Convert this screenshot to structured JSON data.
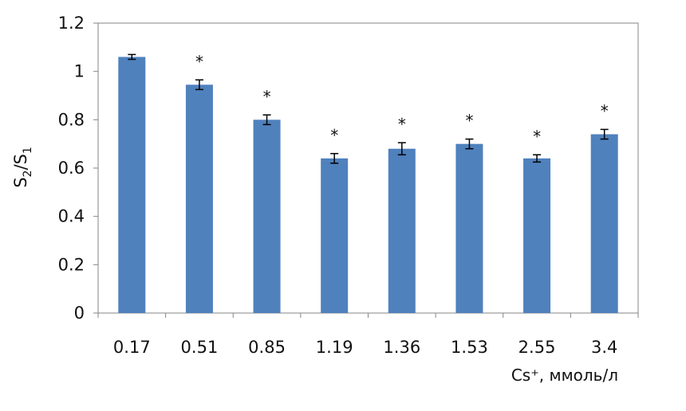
{
  "chart_data": {
    "type": "bar",
    "categories": [
      "0.17",
      "0.51",
      "0.85",
      "1.19",
      "1.36",
      "1.53",
      "2.55",
      "3.4"
    ],
    "values": [
      1.06,
      0.945,
      0.8,
      0.64,
      0.68,
      0.7,
      0.64,
      0.74
    ],
    "errors": [
      0.01,
      0.02,
      0.02,
      0.02,
      0.025,
      0.02,
      0.015,
      0.02
    ],
    "significance": [
      "",
      "*",
      "*",
      "*",
      "*",
      "*",
      "*",
      "*"
    ],
    "ylabel": {
      "base": "S",
      "sub1": "2",
      "sep": "/",
      "base2": "S",
      "sub2": "1"
    },
    "xlabel": "Cs⁺, ммоль/л",
    "ylim": [
      0,
      1.2
    ],
    "yticks": [
      "0",
      "0.2",
      "0.4",
      "0.6",
      "0.8",
      "1",
      "1.2"
    ],
    "bar_color": "#4f81bd",
    "axis_color": "#868686",
    "grid": false
  }
}
